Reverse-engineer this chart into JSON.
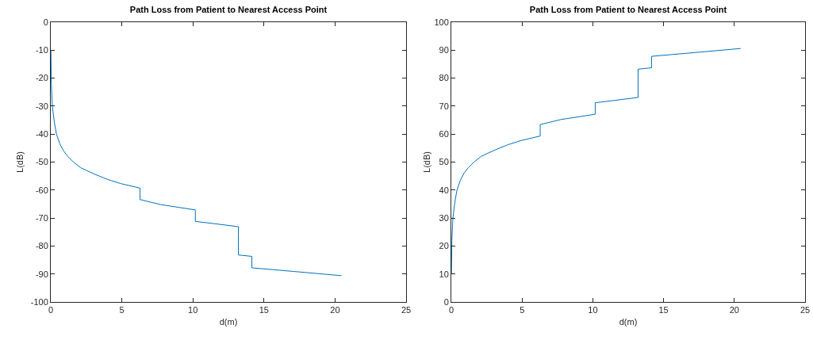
{
  "chart_data": [
    {
      "type": "line",
      "title": "Path Loss from Patient to Nearest Access Point",
      "xlabel": "d(m)",
      "ylabel": "L(dB)",
      "xlim": [
        0,
        25
      ],
      "xticks": [
        0,
        5,
        10,
        15,
        20,
        25
      ],
      "ylim": [
        -100,
        0
      ],
      "yticks": [
        -100,
        -90,
        -80,
        -70,
        -60,
        -50,
        -40,
        -30,
        -20,
        -10,
        0
      ],
      "grid": false,
      "marker": "none",
      "line_style": "solid",
      "series": [
        {
          "color": "#0072bd",
          "x": [
            0.01,
            0.04,
            0.11,
            0.26,
            0.4,
            0.64,
            0.9,
            1.2,
            1.6,
            2.1,
            2.6,
            3.07,
            4.0,
            4.93,
            6.28,
            6.28,
            7.74,
            10.17,
            10.17,
            11.48,
            13.2,
            13.2,
            14.15,
            14.15,
            17.1,
            20.45
          ],
          "values": [
            -10,
            -22,
            -30,
            -36,
            -40,
            -43.5,
            -46,
            -48,
            -50,
            -52,
            -53.2,
            -54.3,
            -56.2,
            -57.7,
            -59.3,
            -63.4,
            -65.2,
            -67.1,
            -71.2,
            -72,
            -73.1,
            -83.2,
            -83.7,
            -87.8,
            -89.1,
            -90.6
          ]
        }
      ]
    },
    {
      "type": "line",
      "title": "Path Loss from Patient to Nearest Access Point",
      "xlabel": "d(m)",
      "ylabel": "L(dB)",
      "xlim": [
        0,
        25
      ],
      "xticks": [
        0,
        5,
        10,
        15,
        20,
        25
      ],
      "ylim": [
        0,
        100
      ],
      "yticks": [
        0,
        10,
        20,
        30,
        40,
        50,
        60,
        70,
        80,
        90,
        100
      ],
      "grid": false,
      "marker": "none",
      "line_style": "solid",
      "series": [
        {
          "color": "#0072bd",
          "x": [
            0.01,
            0.04,
            0.11,
            0.26,
            0.4,
            0.64,
            0.9,
            1.2,
            1.6,
            2.1,
            2.6,
            3.07,
            4.0,
            4.93,
            6.28,
            6.28,
            7.74,
            10.17,
            10.17,
            11.48,
            13.2,
            13.2,
            14.15,
            14.15,
            17.1,
            20.45
          ],
          "values": [
            10,
            22,
            30,
            36,
            40,
            43.5,
            46,
            48,
            50,
            52,
            53.2,
            54.3,
            56.2,
            57.7,
            59.3,
            63.4,
            65.2,
            67.1,
            71.2,
            72,
            73.1,
            83.2,
            83.7,
            87.8,
            89.1,
            90.6
          ]
        }
      ]
    }
  ]
}
